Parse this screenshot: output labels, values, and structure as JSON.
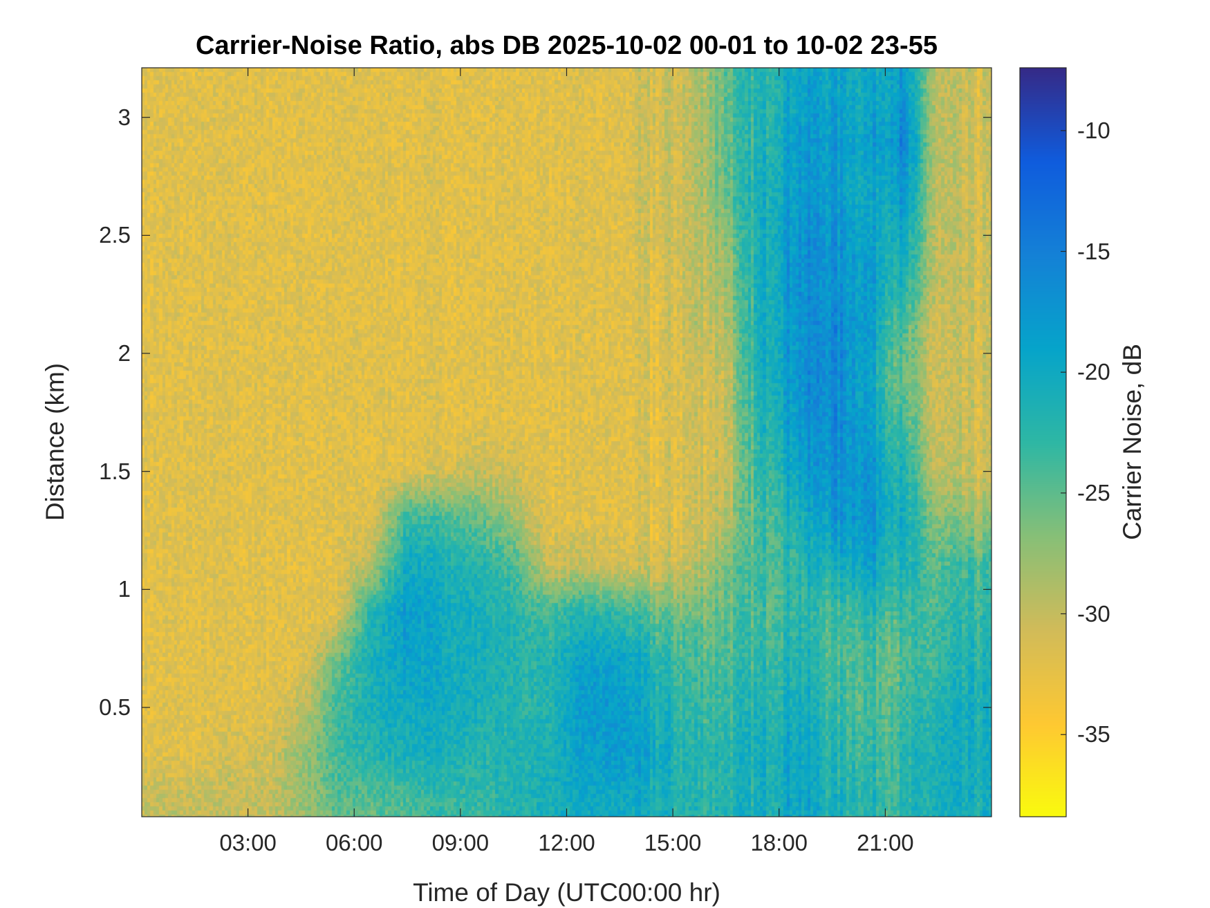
{
  "chart_data": {
    "type": "heatmap",
    "title": "Carrier-Noise Ratio, abs DB 2025-10-02 00-01 to 10-02 23-55",
    "xlabel": "Time of Day (UTC00:00 hr)",
    "ylabel": "Distance (km)",
    "colorbar_label": "Carrier Noise, dB",
    "xlim": [
      0,
      24
    ],
    "ylim": [
      0.037,
      3.21
    ],
    "clim": [
      -38.4,
      -7.4
    ],
    "colormap": "parula",
    "x_ticks": [
      {
        "value": 3,
        "label": "03:00"
      },
      {
        "value": 6,
        "label": "06:00"
      },
      {
        "value": 9,
        "label": "09:00"
      },
      {
        "value": 12,
        "label": "12:00"
      },
      {
        "value": 15,
        "label": "15:00"
      },
      {
        "value": 18,
        "label": "18:00"
      },
      {
        "value": 21,
        "label": "21:00"
      }
    ],
    "y_ticks": [
      {
        "value": 0.5,
        "label": "0.5"
      },
      {
        "value": 1,
        "label": "1"
      },
      {
        "value": 1.5,
        "label": "1.5"
      },
      {
        "value": 2,
        "label": "2"
      },
      {
        "value": 2.5,
        "label": "2.5"
      },
      {
        "value": 3,
        "label": "3"
      }
    ],
    "c_ticks": [
      {
        "value": -10,
        "label": "-10"
      },
      {
        "value": -15,
        "label": "-15"
      },
      {
        "value": -20,
        "label": "-20"
      },
      {
        "value": -25,
        "label": "-25"
      },
      {
        "value": -30,
        "label": "-30"
      },
      {
        "value": -35,
        "label": "-35"
      }
    ],
    "grid_hours": [
      0.5,
      1.5,
      2.5,
      3.5,
      4.5,
      5.5,
      6.5,
      7.5,
      8.5,
      9.5,
      10.5,
      11.5,
      12.5,
      13.5,
      14.5,
      15.5,
      16.5,
      17.5,
      18.5,
      19.5,
      20.5,
      21.5,
      22.5,
      23.5
    ],
    "grid_km": [
      0.1,
      0.3,
      0.5,
      0.7,
      0.9,
      1.1,
      1.3,
      1.5,
      1.7,
      1.9,
      2.1,
      2.3,
      2.5,
      2.7,
      2.9,
      3.1
    ],
    "values_by_hour_dB": [
      [
        -30,
        -32,
        -32,
        -32,
        -32,
        -32,
        -32,
        -32,
        -32,
        -32,
        -32,
        -32,
        -32,
        -32,
        -32,
        -32
      ],
      [
        -30,
        -32,
        -32,
        -32,
        -32,
        -32,
        -32,
        -32,
        -32,
        -32,
        -32,
        -32,
        -32,
        -32,
        -32,
        -32
      ],
      [
        -30,
        -31,
        -32,
        -32,
        -32,
        -32,
        -32,
        -32,
        -32,
        -32,
        -32,
        -32,
        -32,
        -32,
        -32,
        -32
      ],
      [
        -30,
        -31,
        -32,
        -32,
        -32,
        -32,
        -32,
        -32,
        -32,
        -32,
        -32,
        -32,
        -32,
        -32,
        -32,
        -32
      ],
      [
        -28,
        -28,
        -30,
        -32,
        -32,
        -32,
        -32,
        -32,
        -32,
        -32,
        -32,
        -32,
        -32,
        -32,
        -32,
        -32
      ],
      [
        -25,
        -24,
        -24,
        -26,
        -32,
        -32,
        -32,
        -32,
        -32,
        -32,
        -32,
        -32,
        -32,
        -32,
        -32,
        -32
      ],
      [
        -25,
        -22,
        -21,
        -21,
        -22,
        -29,
        -32,
        -32,
        -32,
        -32,
        -32,
        -32,
        -32,
        -32,
        -32,
        -32
      ],
      [
        -24,
        -21,
        -20,
        -19,
        -18,
        -20,
        -23,
        -32,
        -32,
        -32,
        -32,
        -32,
        -32,
        -32,
        -32,
        -32
      ],
      [
        -23,
        -21,
        -20,
        -20,
        -20,
        -21,
        -24,
        -31,
        -32,
        -32,
        -32,
        -32,
        -32,
        -32,
        -32,
        -32
      ],
      [
        -23,
        -22,
        -21,
        -21,
        -21,
        -22,
        -25,
        -30,
        -32,
        -32,
        -32,
        -32,
        -32,
        -32,
        -32,
        -32
      ],
      [
        -22,
        -22,
        -22,
        -22,
        -22,
        -24,
        -28,
        -31,
        -32,
        -32,
        -32,
        -32,
        -32,
        -32,
        -32,
        -32
      ],
      [
        -21,
        -21,
        -22,
        -22,
        -24,
        -30,
        -32,
        -32,
        -32,
        -32,
        -32,
        -32,
        -32,
        -32,
        -32,
        -32
      ],
      [
        -20,
        -19,
        -18,
        -19,
        -22,
        -30,
        -32,
        -32,
        -32,
        -32,
        -32,
        -32,
        -32,
        -32,
        -32,
        -32
      ],
      [
        -20,
        -18,
        -18,
        -19,
        -23,
        -31,
        -32,
        -32,
        -32,
        -32,
        -32,
        -32,
        -32,
        -32,
        -32,
        -32
      ],
      [
        -21,
        -20,
        -21,
        -22,
        -25,
        -31,
        -32,
        -32,
        -32,
        -32,
        -32,
        -32,
        -31,
        -31,
        -31,
        -31
      ],
      [
        -22,
        -22,
        -23,
        -24,
        -26,
        -30,
        -31,
        -31,
        -31,
        -31,
        -30,
        -30,
        -30,
        -30,
        -30,
        -30
      ],
      [
        -22,
        -22,
        -23,
        -24,
        -25,
        -26,
        -29,
        -30,
        -30,
        -30,
        -29,
        -28,
        -27,
        -25,
        -25,
        -25
      ],
      [
        -21,
        -21,
        -22,
        -23,
        -24,
        -24,
        -24,
        -23,
        -22,
        -21,
        -21,
        -21,
        -21,
        -21,
        -22,
        -22
      ],
      [
        -19,
        -19,
        -20,
        -21,
        -22,
        -22,
        -21,
        -19,
        -18,
        -17,
        -17,
        -17,
        -17,
        -18,
        -18,
        -19
      ],
      [
        -21,
        -22,
        -23,
        -24,
        -24,
        -21,
        -18,
        -17,
        -16,
        -16,
        -16,
        -17,
        -17,
        -18,
        -18,
        -19
      ],
      [
        -22,
        -23,
        -24,
        -24,
        -22,
        -19,
        -17,
        -17,
        -18,
        -19,
        -18,
        -18,
        -19,
        -20,
        -19,
        -20
      ],
      [
        -23,
        -23,
        -24,
        -25,
        -24,
        -22,
        -21,
        -22,
        -24,
        -26,
        -25,
        -22,
        -20,
        -18,
        -16,
        -18
      ],
      [
        -21,
        -21,
        -22,
        -23,
        -24,
        -25,
        -27,
        -30,
        -31,
        -31,
        -31,
        -30,
        -30,
        -30,
        -30,
        -30
      ],
      [
        -21,
        -21,
        -21,
        -22,
        -23,
        -24,
        -28,
        -31,
        -31,
        -31,
        -31,
        -31,
        -31,
        -31,
        -31,
        -31
      ]
    ]
  }
}
